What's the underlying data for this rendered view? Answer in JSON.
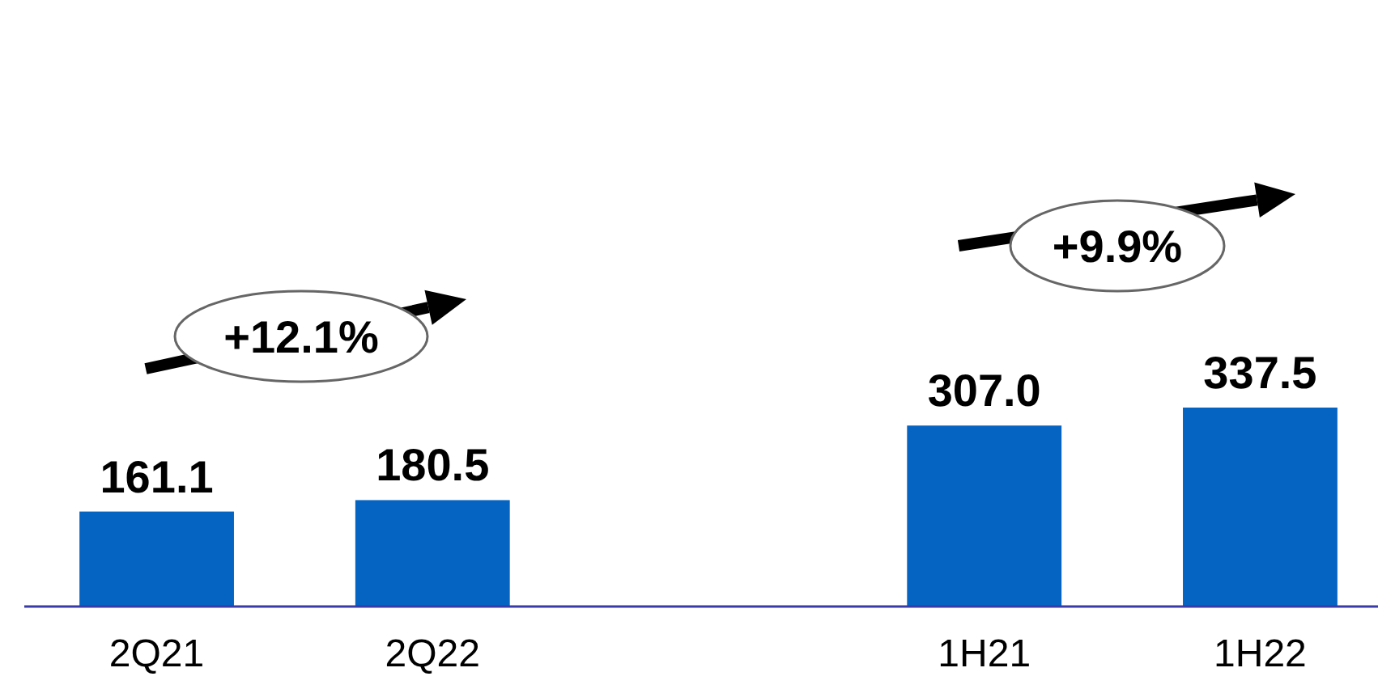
{
  "chart_data": {
    "type": "bar",
    "categories": [
      "2Q21",
      "2Q22",
      null,
      "1H21",
      "1H22"
    ],
    "values": [
      161.1,
      180.5,
      null,
      307.0,
      337.5
    ],
    "value_labels": [
      "161.1",
      "180.5",
      null,
      "307.0",
      "337.5"
    ],
    "color": "#0563c1",
    "annotations": [
      "+12.1%",
      "+9.9%"
    ]
  }
}
